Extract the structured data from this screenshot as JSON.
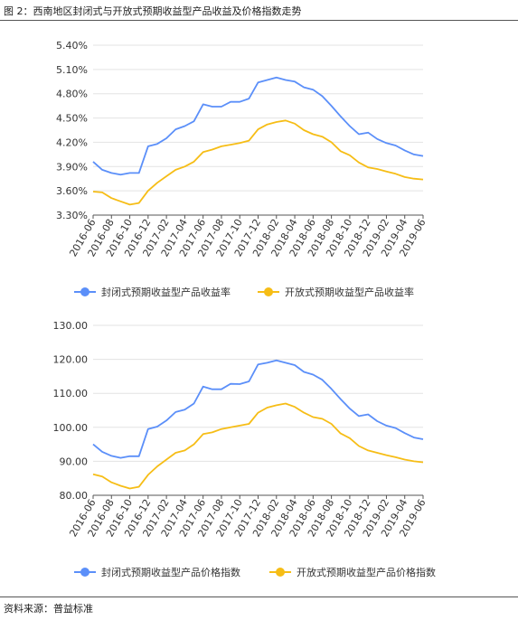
{
  "figure": {
    "title": "图 2：西南地区封闭式与开放式预期收益型产品收益及价格指数走势",
    "source": "资料来源：普益标准"
  },
  "chart_data": [
    {
      "type": "line",
      "x": [
        "2016-06",
        "2016-07",
        "2016-08",
        "2016-09",
        "2016-10",
        "2016-11",
        "2016-12",
        "2017-01",
        "2017-02",
        "2017-03",
        "2017-04",
        "2017-05",
        "2017-06",
        "2017-07",
        "2017-08",
        "2017-09",
        "2017-10",
        "2017-11",
        "2017-12",
        "2018-01",
        "2018-02",
        "2018-03",
        "2018-04",
        "2018-05",
        "2018-06",
        "2018-07",
        "2018-08",
        "2018-09",
        "2018-10",
        "2018-11",
        "2018-12",
        "2019-01",
        "2019-02",
        "2019-03",
        "2019-04",
        "2019-05",
        "2019-06"
      ],
      "tick_labels": [
        "2016-06",
        "2016-08",
        "2016-10",
        "2016-12",
        "2017-02",
        "2017-04",
        "2017-06",
        "2017-08",
        "2017-10",
        "2017-12",
        "2018-02",
        "2018-04",
        "2018-06",
        "2018-08",
        "2018-10",
        "2018-12",
        "2019-02",
        "2019-04",
        "2019-06"
      ],
      "y_ticks": [
        "3.30%",
        "3.60%",
        "3.90%",
        "4.20%",
        "4.50%",
        "4.80%",
        "5.10%",
        "5.40%"
      ],
      "ylim": [
        3.3,
        5.4
      ],
      "grid": true,
      "legend_position": "bottom",
      "series": [
        {
          "name": "封闭式预期收益型产品收益率",
          "color": "#5B8FF9",
          "values": [
            3.96,
            3.86,
            3.82,
            3.8,
            3.82,
            3.82,
            4.15,
            4.18,
            4.25,
            4.36,
            4.4,
            4.46,
            4.67,
            4.64,
            4.64,
            4.7,
            4.7,
            4.74,
            4.94,
            4.97,
            5.0,
            4.97,
            4.95,
            4.88,
            4.85,
            4.77,
            4.65,
            4.52,
            4.4,
            4.3,
            4.32,
            4.24,
            4.19,
            4.16,
            4.1,
            4.05,
            4.03
          ]
        },
        {
          "name": "开放式预期收益型产品收益率",
          "color": "#F6BD16",
          "values": [
            3.59,
            3.58,
            3.51,
            3.47,
            3.43,
            3.45,
            3.6,
            3.7,
            3.78,
            3.86,
            3.9,
            3.96,
            4.08,
            4.11,
            4.15,
            4.17,
            4.19,
            4.22,
            4.36,
            4.42,
            4.45,
            4.47,
            4.43,
            4.35,
            4.3,
            4.27,
            4.2,
            4.09,
            4.04,
            3.95,
            3.89,
            3.87,
            3.84,
            3.81,
            3.77,
            3.75,
            3.74
          ]
        }
      ]
    },
    {
      "type": "line",
      "x": [
        "2016-06",
        "2016-07",
        "2016-08",
        "2016-09",
        "2016-10",
        "2016-11",
        "2016-12",
        "2017-01",
        "2017-02",
        "2017-03",
        "2017-04",
        "2017-05",
        "2017-06",
        "2017-07",
        "2017-08",
        "2017-09",
        "2017-10",
        "2017-11",
        "2017-12",
        "2018-01",
        "2018-02",
        "2018-03",
        "2018-04",
        "2018-05",
        "2018-06",
        "2018-07",
        "2018-08",
        "2018-09",
        "2018-10",
        "2018-11",
        "2018-12",
        "2019-01",
        "2019-02",
        "2019-03",
        "2019-04",
        "2019-05",
        "2019-06"
      ],
      "tick_labels": [
        "2016-06",
        "2016-08",
        "2016-10",
        "2016-12",
        "2017-02",
        "2017-04",
        "2017-06",
        "2017-08",
        "2017-10",
        "2017-12",
        "2018-02",
        "2018-04",
        "2018-06",
        "2018-08",
        "2018-10",
        "2018-12",
        "2019-02",
        "2019-04",
        "2019-06"
      ],
      "y_ticks": [
        "80.00",
        "90.00",
        "100.00",
        "110.00",
        "120.00",
        "130.00"
      ],
      "ylim": [
        80,
        130
      ],
      "grid": true,
      "legend_position": "bottom",
      "series": [
        {
          "name": "封闭式预期收益型产品价格指数",
          "color": "#5B8FF9",
          "values": [
            95.0,
            92.8,
            91.6,
            91.0,
            91.5,
            91.5,
            99.5,
            100.2,
            102.0,
            104.5,
            105.2,
            107.0,
            112.0,
            111.2,
            111.2,
            112.8,
            112.7,
            113.5,
            118.5,
            119.0,
            119.7,
            119.0,
            118.3,
            116.3,
            115.5,
            114.0,
            111.3,
            108.3,
            105.5,
            103.3,
            103.8,
            101.8,
            100.5,
            99.8,
            98.3,
            97.0,
            96.5
          ]
        },
        {
          "name": "开放式预期收益型产品价格指数",
          "color": "#F6BD16",
          "values": [
            86.2,
            85.5,
            83.8,
            82.8,
            82.0,
            82.5,
            86.0,
            88.5,
            90.5,
            92.5,
            93.2,
            95.0,
            98.0,
            98.5,
            99.5,
            100.0,
            100.5,
            101.0,
            104.3,
            105.8,
            106.5,
            107.0,
            106.0,
            104.3,
            103.0,
            102.5,
            101.0,
            98.2,
            96.8,
            94.5,
            93.2,
            92.5,
            91.8,
            91.2,
            90.5,
            90.0,
            89.7
          ]
        }
      ]
    }
  ]
}
